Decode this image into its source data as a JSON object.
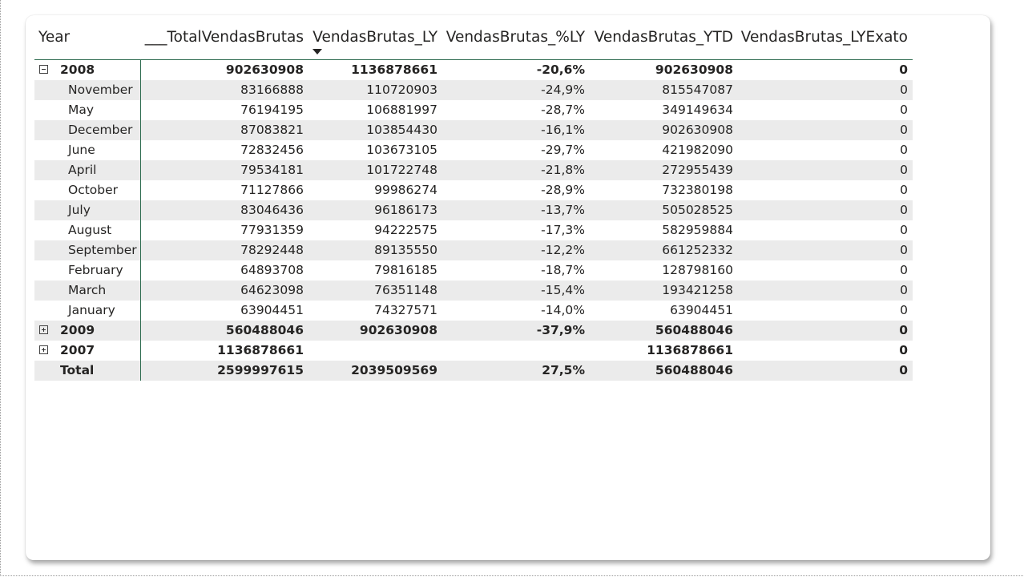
{
  "matrix": {
    "columns": [
      "Year",
      "___TotalVendasBrutas",
      "VendasBrutas_LY",
      "VendasBrutas_%LY",
      "VendasBrutas_YTD",
      "VendasBrutas_LYExato"
    ],
    "sort_column": "VendasBrutas_LY",
    "rows": [
      {
        "type": "year",
        "expander": "minus",
        "label": "2008",
        "values": [
          "902630908",
          "1136878661",
          "-20,6%",
          "902630908",
          "0"
        ]
      },
      {
        "type": "month",
        "label": "November",
        "values": [
          "83166888",
          "110720903",
          "-24,9%",
          "815547087",
          "0"
        ]
      },
      {
        "type": "month",
        "label": "May",
        "values": [
          "76194195",
          "106881997",
          "-28,7%",
          "349149634",
          "0"
        ]
      },
      {
        "type": "month",
        "label": "December",
        "values": [
          "87083821",
          "103854430",
          "-16,1%",
          "902630908",
          "0"
        ]
      },
      {
        "type": "month",
        "label": "June",
        "values": [
          "72832456",
          "103673105",
          "-29,7%",
          "421982090",
          "0"
        ]
      },
      {
        "type": "month",
        "label": "April",
        "values": [
          "79534181",
          "101722748",
          "-21,8%",
          "272955439",
          "0"
        ]
      },
      {
        "type": "month",
        "label": "October",
        "values": [
          "71127866",
          "99986274",
          "-28,9%",
          "732380198",
          "0"
        ]
      },
      {
        "type": "month",
        "label": "July",
        "values": [
          "83046436",
          "96186173",
          "-13,7%",
          "505028525",
          "0"
        ]
      },
      {
        "type": "month",
        "label": "August",
        "values": [
          "77931359",
          "94222575",
          "-17,3%",
          "582959884",
          "0"
        ]
      },
      {
        "type": "month",
        "label": "September",
        "values": [
          "78292448",
          "89135550",
          "-12,2%",
          "661252332",
          "0"
        ]
      },
      {
        "type": "month",
        "label": "February",
        "values": [
          "64893708",
          "79816185",
          "-18,7%",
          "128798160",
          "0"
        ]
      },
      {
        "type": "month",
        "label": "March",
        "values": [
          "64623098",
          "76351148",
          "-15,4%",
          "193421258",
          "0"
        ]
      },
      {
        "type": "month",
        "label": "January",
        "values": [
          "63904451",
          "74327571",
          "-14,0%",
          "63904451",
          "0"
        ]
      },
      {
        "type": "year",
        "expander": "plus",
        "label": "2009",
        "values": [
          "560488046",
          "902630908",
          "-37,9%",
          "560488046",
          "0"
        ]
      },
      {
        "type": "year",
        "expander": "plus",
        "label": "2007",
        "values": [
          "1136878661",
          "",
          "",
          "1136878661",
          "0"
        ]
      },
      {
        "type": "total",
        "label": "Total",
        "values": [
          "2599997615",
          "2039509569",
          "27,5%",
          "560488046",
          "0"
        ]
      }
    ]
  },
  "colors": {
    "row_shade": "#ebebeb",
    "divider": "#2d6b4f",
    "text": "#252423"
  }
}
